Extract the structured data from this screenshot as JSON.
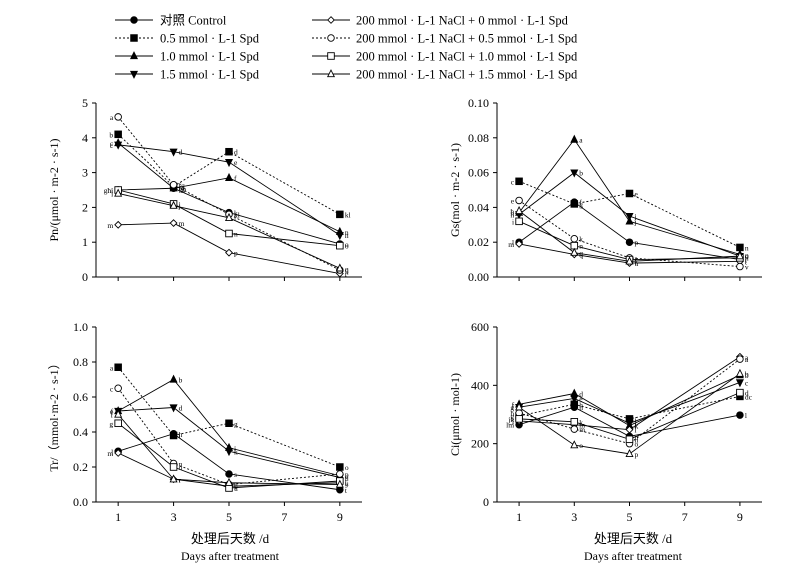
{
  "legend": {
    "left": [
      {
        "label": "对照 Control",
        "marker": "filled-circle",
        "dash": "solid"
      },
      {
        "label": "0.5 mmol · L-1 Spd",
        "marker": "filled-square",
        "dash": "dotted"
      },
      {
        "label": "1.0 mmol · L-1 Spd",
        "marker": "filled-triangle-up",
        "dash": "solid"
      },
      {
        "label": "1.5 mmol · L-1 Spd",
        "marker": "filled-triangle-down",
        "dash": "solid"
      }
    ],
    "right": [
      {
        "label": "200 mmol · L-1 NaCl + 0 mmol · L-1 Spd",
        "marker": "open-diamond",
        "dash": "solid"
      },
      {
        "label": "200 mmol · L-1 NaCl + 0.5 mmol · L-1 Spd",
        "marker": "open-circle",
        "dash": "dotted"
      },
      {
        "label": "200 mmol · L-1 NaCl + 1.0 mmol · L-1 Spd",
        "marker": "open-square",
        "dash": "solid"
      },
      {
        "label": "200 mmol · L-1 NaCl + 1.5 mmol · L-1 Spd",
        "marker": "open-triangle-up",
        "dash": "solid"
      }
    ]
  },
  "xaxis": {
    "label_cn": "处理后天数 /d",
    "label_en": "Days after treatment"
  },
  "chart_data": [
    {
      "id": "pn",
      "type": "line",
      "ylabel": "Pn/(μmol · m-2 · s-1)",
      "x": [
        1,
        3,
        5,
        9
      ],
      "xticks": [
        1,
        3,
        5,
        7,
        9
      ],
      "ylim": [
        0,
        5
      ],
      "yticks": [
        0,
        1,
        2,
        3,
        4,
        5
      ],
      "series": [
        {
          "name": "对照 Control",
          "values": [
            2.5,
            2.55,
            1.85,
            0.95
          ],
          "labels": [
            "hi",
            "gh",
            "k",
            "o"
          ]
        },
        {
          "name": "0.5 mmol · L-1 Spd",
          "values": [
            4.1,
            2.6,
            3.6,
            1.8
          ],
          "labels": [
            "b",
            "f",
            "d",
            "kl"
          ]
        },
        {
          "name": "1.0 mmol · L-1 Spd",
          "values": [
            3.85,
            2.55,
            2.85,
            1.3
          ],
          "labels": [
            "c",
            "fg",
            "f",
            "n"
          ]
        },
        {
          "name": "1.5 mmol · L-1 Spd",
          "values": [
            3.8,
            3.6,
            3.3,
            1.2
          ],
          "labels": [
            "c",
            "d",
            "e",
            "n"
          ]
        },
        {
          "name": "200 mmol · L-1 NaCl + 0 mmol · L-1 Spd",
          "values": [
            1.5,
            1.55,
            0.7,
            0.1
          ],
          "labels": [
            "m",
            "m",
            "p",
            "r"
          ]
        },
        {
          "name": "200 mmol · L-1 NaCl + 0.5 mmol · L-1 Spd",
          "values": [
            4.6,
            2.65,
            1.8,
            0.2
          ],
          "labels": [
            "a",
            "fg",
            "kl",
            "q"
          ]
        },
        {
          "name": "200 mmol · L-1 NaCl + 1.0 mmol · L-1 Spd",
          "values": [
            2.5,
            2.1,
            1.25,
            0.9
          ],
          "labels": [
            "ghi",
            "j",
            "n",
            "o"
          ]
        },
        {
          "name": "200 mmol · L-1 NaCl + 1.5 mmol · L-1 Spd",
          "values": [
            2.4,
            2.05,
            1.7,
            0.25
          ],
          "labels": [
            "i",
            "j",
            "l",
            "q"
          ]
        }
      ]
    },
    {
      "id": "gs",
      "type": "line",
      "ylabel": "Gs(mol · m-2 · s-1)",
      "x": [
        1,
        3,
        5,
        9
      ],
      "xticks": [
        1,
        3,
        5,
        7,
        9
      ],
      "ylim": [
        0,
        0.1
      ],
      "yticks": [
        0.0,
        0.02,
        0.04,
        0.06,
        0.08,
        0.1
      ],
      "series": [
        {
          "name": "对照 Control",
          "values": [
            0.02,
            0.043,
            0.02,
            0.01
          ],
          "labels": [
            "l",
            "f",
            "p",
            "t"
          ]
        },
        {
          "name": "0.5 mmol · L-1 Spd",
          "values": [
            0.055,
            0.042,
            0.048,
            0.017
          ],
          "labels": [
            "c",
            "g",
            "e",
            "n"
          ]
        },
        {
          "name": "1.0 mmol · L-1 Spd",
          "values": [
            0.037,
            0.079,
            0.032,
            0.013
          ],
          "labels": [
            "h",
            "a",
            "j",
            "o"
          ]
        },
        {
          "name": "1.5 mmol · L-1 Spd",
          "values": [
            0.036,
            0.06,
            0.035,
            0.012
          ],
          "labels": [
            "h",
            "b",
            "j",
            "o"
          ]
        },
        {
          "name": "200 mmol · L-1 NaCl + 0 mmol · L-1 Spd",
          "values": [
            0.019,
            0.013,
            0.008,
            0.009
          ],
          "labels": [
            "m",
            "q",
            "u",
            "t"
          ]
        },
        {
          "name": "200 mmol · L-1 NaCl + 0.5 mmol · L-1 Spd",
          "values": [
            0.044,
            0.022,
            0.011,
            0.006
          ],
          "labels": [
            "e",
            "k",
            "r",
            "v"
          ]
        },
        {
          "name": "200 mmol · L-1 NaCl + 1.0 mmol · L-1 Spd",
          "values": [
            0.032,
            0.018,
            0.01,
            0.011
          ],
          "labels": [
            "i",
            "n",
            "s",
            "r"
          ]
        },
        {
          "name": "200 mmol · L-1 NaCl + 1.5 mmol · L-1 Spd",
          "values": [
            0.038,
            0.014,
            0.009,
            0.012
          ],
          "labels": [
            "h",
            "q",
            "t",
            "q"
          ]
        }
      ]
    },
    {
      "id": "tr",
      "type": "line",
      "ylabel": "Tr/（mmol·m-2 · s-1）",
      "x": [
        1,
        3,
        5,
        9
      ],
      "xticks": [
        1,
        3,
        5,
        7,
        9
      ],
      "ylim": [
        0,
        1.0
      ],
      "yticks": [
        0.0,
        0.2,
        0.4,
        0.6,
        0.8,
        1.0
      ],
      "series": [
        {
          "name": "对照 Control",
          "values": [
            0.29,
            0.39,
            0.16,
            0.07
          ],
          "labels": [
            "l",
            "h",
            "s",
            "t"
          ]
        },
        {
          "name": "0.5 mmol · L-1 Spd",
          "values": [
            0.77,
            0.38,
            0.45,
            0.2
          ],
          "labels": [
            "a",
            "i",
            "g",
            "o"
          ]
        },
        {
          "name": "1.0 mmol · L-1 Spd",
          "values": [
            0.52,
            0.7,
            0.31,
            0.15
          ],
          "labels": [
            "e",
            "b",
            "j",
            "q"
          ]
        },
        {
          "name": "1.5 mmol · L-1 Spd",
          "values": [
            0.52,
            0.54,
            0.29,
            0.14
          ],
          "labels": [
            "f",
            "d",
            "k",
            "r"
          ]
        },
        {
          "name": "200 mmol · L-1 NaCl + 0 mmol · L-1 Spd",
          "values": [
            0.28,
            0.13,
            0.09,
            0.11
          ],
          "labels": [
            "m",
            "r",
            "v",
            "u"
          ]
        },
        {
          "name": "200 mmol · L-1 NaCl + 0.5 mmol · L-1 Spd",
          "values": [
            0.65,
            0.22,
            0.1,
            0.16
          ],
          "labels": [
            "c",
            "n",
            "t",
            "p"
          ]
        },
        {
          "name": "200 mmol · L-1 NaCl + 1.0 mmol · L-1 Spd",
          "values": [
            0.45,
            0.2,
            0.08,
            0.12
          ],
          "labels": [
            "g",
            "o",
            "u",
            "r"
          ]
        },
        {
          "name": "200 mmol · L-1 NaCl + 1.5 mmol · L-1 Spd",
          "values": [
            0.5,
            0.13,
            0.11,
            0.1
          ],
          "labels": [
            "f",
            "r",
            "u",
            "s"
          ]
        }
      ]
    },
    {
      "id": "ci",
      "type": "line",
      "ylabel": "Ci(μmol · mol-1)",
      "x": [
        1,
        3,
        5,
        9
      ],
      "xticks": [
        1,
        3,
        5,
        7,
        9
      ],
      "ylim": [
        0,
        600
      ],
      "yticks": [
        0,
        200,
        400,
        600
      ],
      "series": [
        {
          "name": "对照 Control",
          "values": [
            265,
            325,
            225,
            298
          ],
          "labels": [
            "lm",
            "h",
            "n",
            "l"
          ]
        },
        {
          "name": "0.5 mmol · L-1 Spd",
          "values": [
            295,
            335,
            285,
            362
          ],
          "labels": [
            "g",
            "h",
            "i",
            "dc"
          ]
        },
        {
          "name": "1.0 mmol · L-1 Spd",
          "values": [
            335,
            372,
            262,
            435
          ],
          "labels": [
            "f",
            "d",
            "k",
            "b"
          ]
        },
        {
          "name": "1.5 mmol · L-1 Spd",
          "values": [
            325,
            355,
            270,
            410
          ],
          "labels": [
            "f",
            "e",
            "j",
            "c"
          ]
        },
        {
          "name": "200 mmol · L-1 NaCl + 0 mmol · L-1 Spd",
          "values": [
            278,
            265,
            248,
            498
          ],
          "labels": [
            "i",
            "m",
            "l",
            "a"
          ]
        },
        {
          "name": "200 mmol · L-1 NaCl + 0.5 mmol · L-1 Spd",
          "values": [
            305,
            250,
            200,
            490
          ],
          "labels": [
            "h",
            "m",
            "o",
            "a"
          ]
        },
        {
          "name": "200 mmol · L-1 NaCl + 1.0 mmol · L-1 Spd",
          "values": [
            285,
            275,
            215,
            375
          ],
          "labels": [
            "jk",
            "k",
            "n",
            "d"
          ]
        },
        {
          "name": "200 mmol · L-1 NaCl + 1.5 mmol · L-1 Spd",
          "values": [
            325,
            195,
            165,
            440
          ],
          "labels": [
            "g",
            "o",
            "p",
            "b"
          ]
        }
      ]
    }
  ]
}
